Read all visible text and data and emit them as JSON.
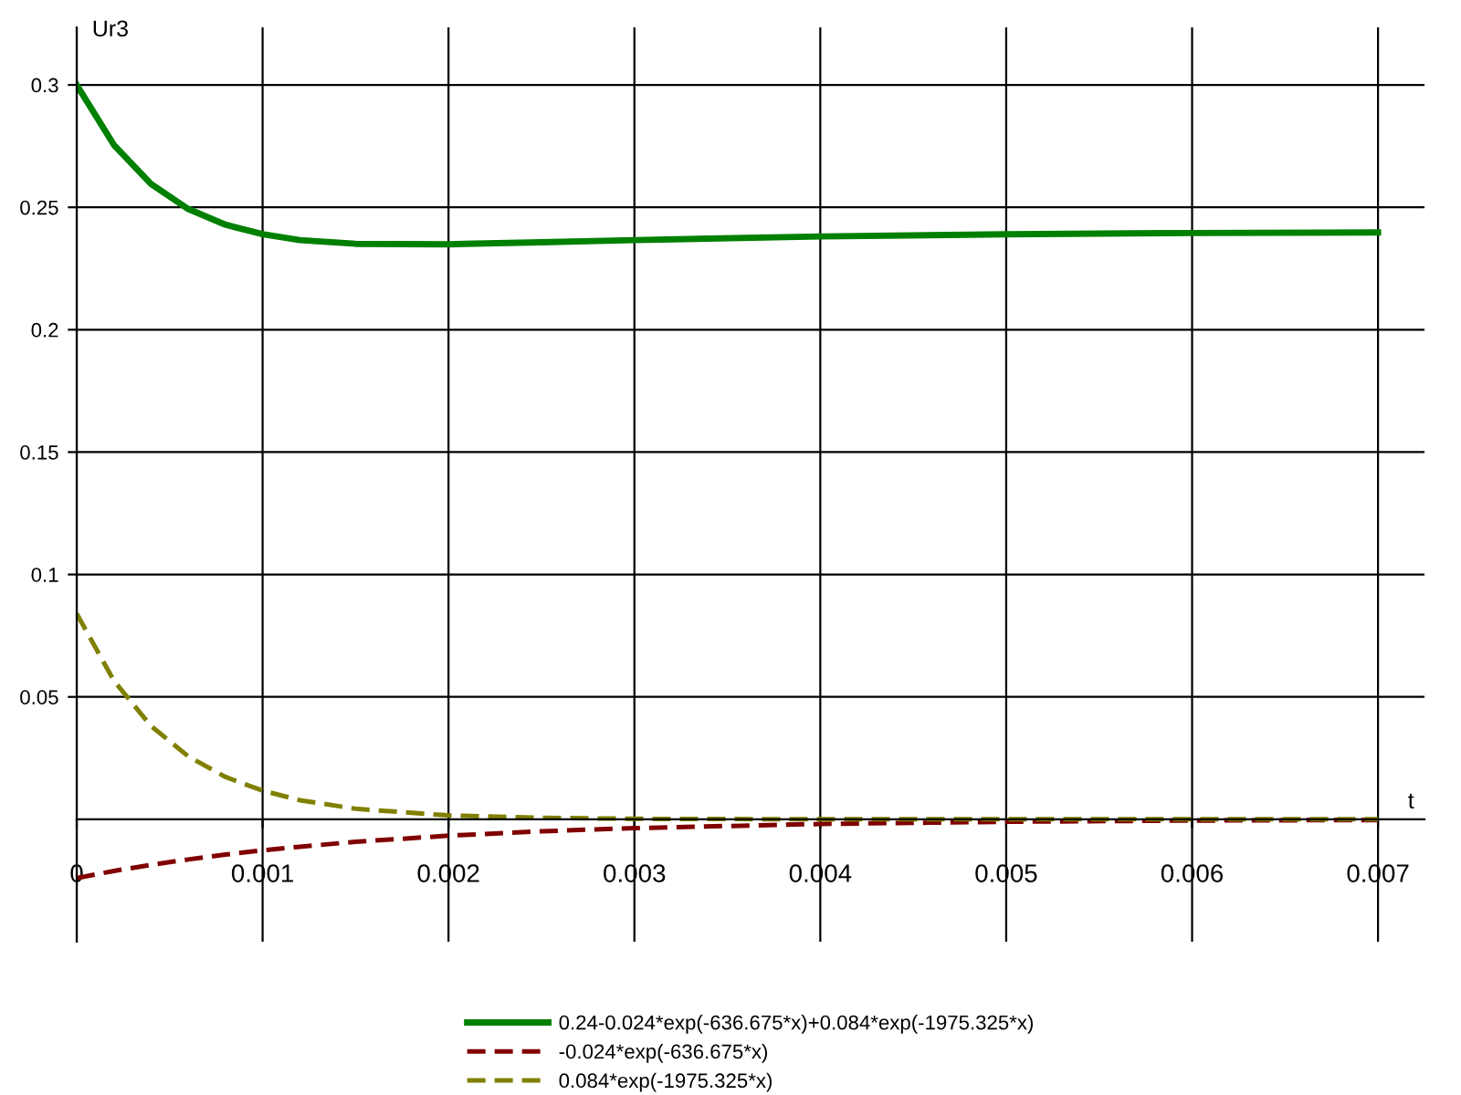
{
  "chart_data": {
    "type": "line",
    "xlabel": "t",
    "ylabel": "Ur3",
    "x": [
      0,
      0.0002,
      0.0004,
      0.0006,
      0.0008,
      0.001,
      0.0012,
      0.0015,
      0.002,
      0.0025,
      0.003,
      0.004,
      0.005,
      0.006,
      0.007
    ],
    "series": [
      {
        "name": "0.24-0.024*exp(-636.675*x)+0.084*exp(-1975.325*x)",
        "color": "#008000",
        "line_style": "solid",
        "values": [
          0.3,
          0.2755,
          0.2595,
          0.2493,
          0.2429,
          0.239,
          0.2366,
          0.2351,
          0.2349,
          0.2357,
          0.2366,
          0.2381,
          0.239,
          0.2395,
          0.2397
        ]
      },
      {
        "name": "-0.024*exp(-636.675*x)",
        "color": "#800000",
        "line_style": "dashed",
        "values": [
          -0.024,
          -0.0211,
          -0.0186,
          -0.0164,
          -0.0144,
          -0.0127,
          -0.0112,
          -0.0092,
          -0.0067,
          -0.0049,
          -0.0036,
          -0.0019,
          -0.001,
          -0.0005,
          -0.0003
        ]
      },
      {
        "name": "0.084*exp(-1975.325*x)",
        "color": "#808000",
        "line_style": "dashed",
        "values": [
          0.084,
          0.0566,
          0.0381,
          0.0257,
          0.0173,
          0.0117,
          0.0078,
          0.0043,
          0.0016,
          0.0006,
          0.0002,
          0.0,
          0.0,
          0.0,
          0.0
        ]
      }
    ],
    "xlim": [
      0,
      0.00725
    ],
    "xticks": [
      {
        "value": 0,
        "label": "0"
      },
      0.001,
      0.002,
      0.003,
      0.004,
      0.005,
      0.006,
      0.007
    ],
    "ylim": [
      -0.05,
      0.3235
    ],
    "yticks": [
      0.05,
      0.1,
      0.15,
      0.2,
      0.25,
      0.3
    ],
    "grid": true,
    "legend": "bottom"
  }
}
